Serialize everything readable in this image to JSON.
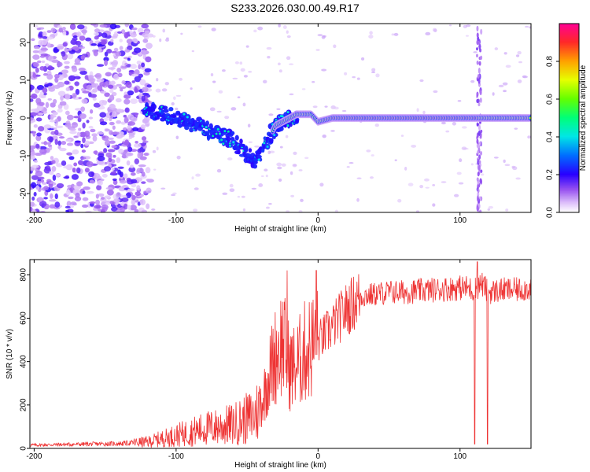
{
  "title": "S233.2026.030.00.49.R17",
  "colors": {
    "snr_line": "#ee3333",
    "axis": "#000000",
    "background": "#ffffff"
  },
  "chart_data": [
    {
      "type": "heatmap",
      "xlabel": "Height of straight line (km)",
      "ylabel": "Frequency (Hz)",
      "xlim": [
        -203,
        150
      ],
      "ylim": [
        -25,
        25
      ],
      "x_ticks": [
        -200,
        -100,
        0,
        100
      ],
      "y_ticks": [
        -20,
        -10,
        0,
        10,
        20
      ],
      "colorbar": {
        "label": "Normalized spectral amplitude",
        "range": [
          0,
          1
        ],
        "ticks": [
          0.0,
          0.2,
          0.4,
          0.6,
          0.8
        ],
        "tick_labels": [
          "0.0",
          "0.2",
          "0.4",
          "0.6",
          "0.8"
        ]
      },
      "ridge": {
        "description_points": [
          {
            "x": -120,
            "y": 2
          },
          {
            "x": -100,
            "y": 0
          },
          {
            "x": -80,
            "y": -3
          },
          {
            "x": -60,
            "y": -6
          },
          {
            "x": -45,
            "y": -12
          },
          {
            "x": -30,
            "y": -2
          },
          {
            "x": -15,
            "y": 1
          },
          {
            "x": -5,
            "y": 1
          },
          {
            "x": 0,
            "y": -1
          },
          {
            "x": 10,
            "y": 0
          },
          {
            "x": 60,
            "y": 0
          },
          {
            "x": 110,
            "y": 0
          },
          {
            "x": 150,
            "y": 0
          }
        ]
      }
    },
    {
      "type": "line",
      "xlabel": "Height of straight line (km)",
      "ylabel": "SNR (10 * v/v)",
      "xlim": [
        -203,
        150
      ],
      "ylim": [
        0,
        870
      ],
      "x_ticks": [
        -200,
        -100,
        0,
        100
      ],
      "y_ticks": [
        0,
        200,
        400,
        600,
        800
      ],
      "series": [
        {
          "x": [
            -203,
            -180,
            -160,
            -140,
            -120,
            -100,
            -80,
            -60,
            -45,
            -40,
            -35,
            -30,
            -25,
            -20,
            -15,
            -10,
            -5,
            0,
            10,
            20,
            30,
            40,
            50,
            60,
            80,
            100,
            105,
            110,
            115,
            120,
            130,
            140,
            150
          ],
          "y": [
            15,
            18,
            20,
            22,
            30,
            60,
            90,
            110,
            150,
            200,
            330,
            430,
            500,
            370,
            380,
            440,
            470,
            490,
            560,
            640,
            700,
            710,
            720,
            720,
            730,
            740,
            740,
            730,
            760,
            720,
            730,
            730,
            740
          ]
        }
      ]
    }
  ]
}
